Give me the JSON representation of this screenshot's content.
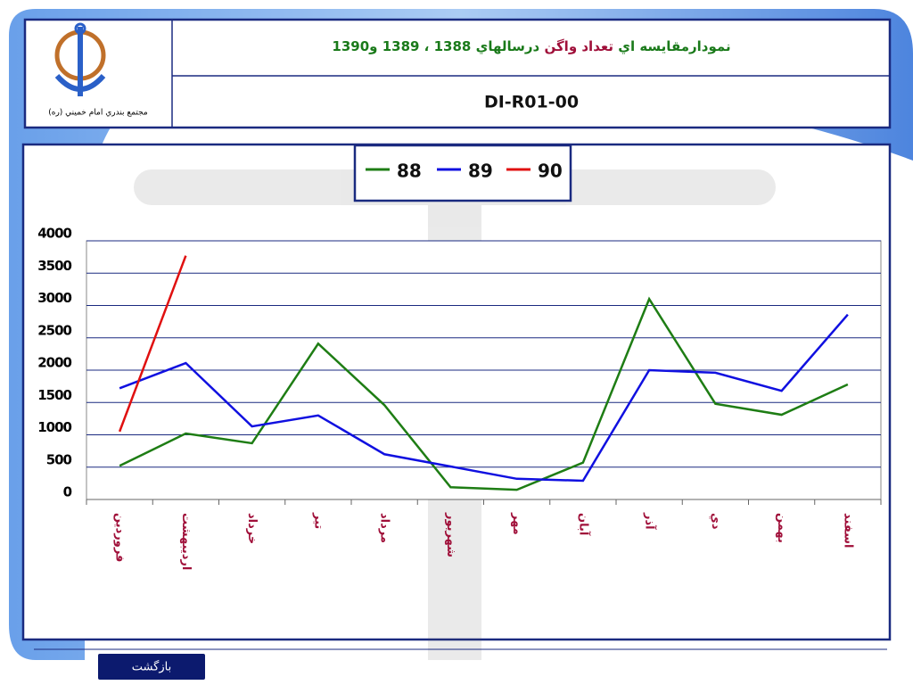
{
  "header": {
    "title": [
      "نمودارمقايسه اي",
      "تعداد واگن",
      "درسالهاي 1388 ، 1389 و1390"
    ],
    "code": "DI-R01-00",
    "logo_caption": "مجتمع بندري امام خميني (ره)"
  },
  "chart_data": {
    "type": "line",
    "categories": [
      "فروردين",
      "ارديبهشت",
      "خرداد",
      "تير",
      "مرداد",
      "شهريور",
      "مهر",
      "آبان",
      "آذر",
      "دي",
      "بهمن",
      "اسفند"
    ],
    "series": [
      {
        "name": "88",
        "color": "#1e7d14",
        "values": [
          520,
          1020,
          870,
          2410,
          1460,
          190,
          150,
          570,
          3100,
          1480,
          1310,
          1780
        ]
      },
      {
        "name": "89",
        "color": "#1010e0",
        "values": [
          1720,
          2110,
          1130,
          1300,
          700,
          510,
          320,
          290,
          2000,
          1960,
          1680,
          2860
        ]
      },
      {
        "name": "90",
        "color": "#e01010",
        "values": [
          1050,
          3770,
          null,
          null,
          null,
          null,
          null,
          null,
          null,
          null,
          null,
          null
        ]
      }
    ],
    "ylim": [
      0,
      4000
    ],
    "yticks": [
      0,
      500,
      1000,
      1500,
      2000,
      2500,
      3000,
      3500,
      4000
    ],
    "grid": true,
    "legend": "top"
  },
  "footer": {
    "button": "بازگشت"
  }
}
